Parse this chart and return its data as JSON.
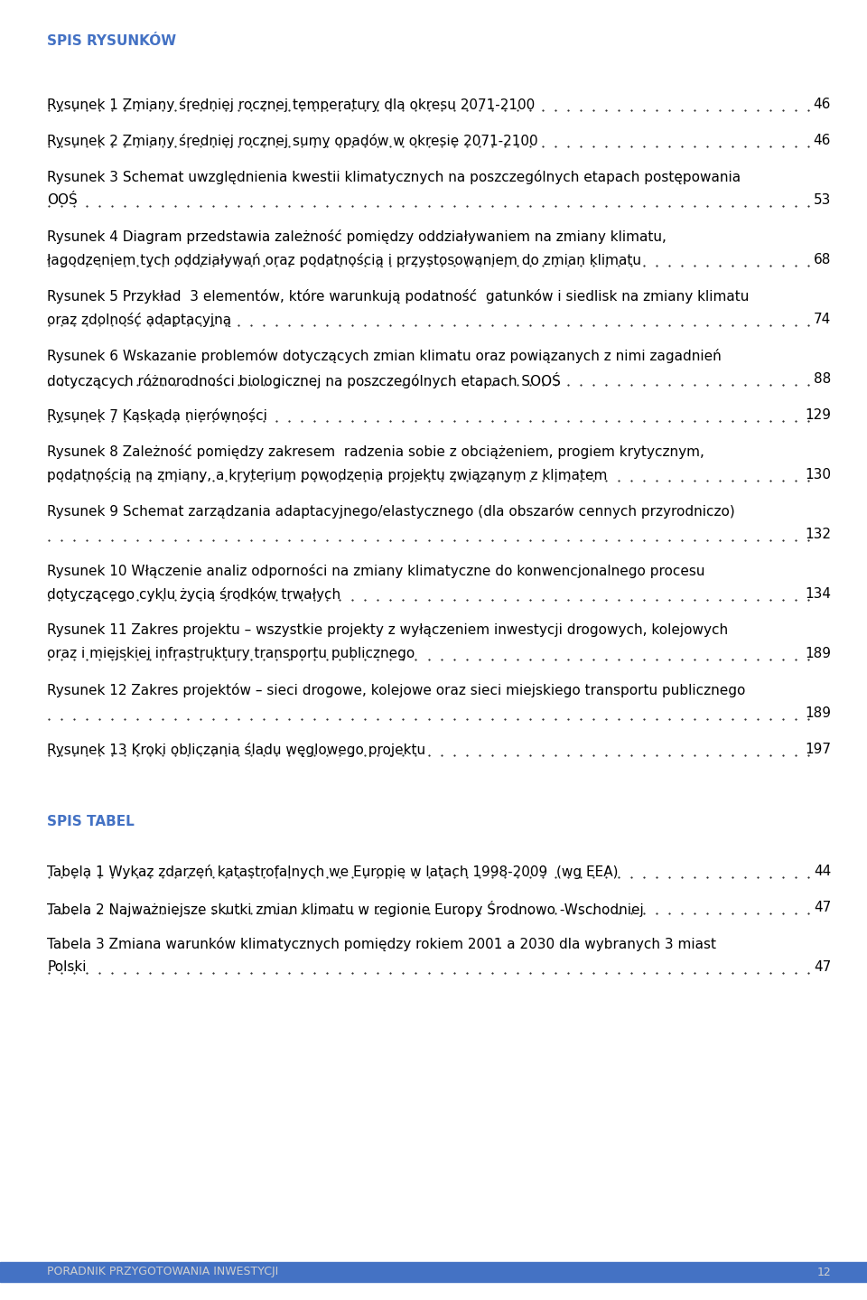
{
  "background_color": "#ffffff",
  "header_color": "#4472c4",
  "text_color": "#000000",
  "footer_bar_color": "#4472c4",
  "footer_text_color": "#d0d0d0",
  "section1_title": "SPIS RYSUNKÓW",
  "section2_title": "SPIS TABEL",
  "toc_entries": [
    {
      "lines": [
        "Rysunek 1 Zmiany średniej rocznej temperatury dla okresu 2071-2100"
      ],
      "page": "46"
    },
    {
      "lines": [
        "Rysunek 2 Zmiany średniej rocznej sumy opadów w okresie 2071-2100"
      ],
      "page": "46"
    },
    {
      "lines": [
        "Rysunek 3 Schemat uwzględnienia kwestii klimatycznych na poszczególnych etapach postępowania",
        "OOŚ"
      ],
      "page": "53"
    },
    {
      "lines": [
        "Rysunek 4 Diagram przedstawia zależność pomiędzy oddziaływaniem na zmiany klimatu,",
        "łagodzeniem tych oddziaływań oraz podatnością i przystosowaniem do zmian klimatu"
      ],
      "page": "68"
    },
    {
      "lines": [
        "Rysunek 5 Przykład  3 elementów, które warunkują podatność  gatunków i siedlisk na zmiany klimatu",
        "oraz zdolność adaptacyjną"
      ],
      "page": "74"
    },
    {
      "lines": [
        "Rysunek 6 Wskazanie problemów dotyczących zmian klimatu oraz powiązanych z nimi zagadnień",
        "dotyczących różnorodności biologicznej na poszczególnych etapach SOOŚ"
      ],
      "page": "88"
    },
    {
      "lines": [
        "Rysunek 7 Kaskada nierówności"
      ],
      "page": "129"
    },
    {
      "lines": [
        "Rysunek 8 Zależność pomiędzy zakresem  radzenia sobie z obciążeniem, progiem krytycznym,",
        "podatnością na zmiany, a kryterium powodzenia projektu związanym z klimatem"
      ],
      "page": "130"
    },
    {
      "lines": [
        "Rysunek 9 Schemat zarządzania adaptacyjnego/elastycznego (dla obszarów cennych przyrodniczo)",
        ""
      ],
      "page": "132"
    },
    {
      "lines": [
        "Rysunek 10 Włączenie analiz odporności na zmiany klimatyczne do konwencjonalnego procesu",
        "dotyczącego cyklu życia środków trwałych"
      ],
      "page": "134"
    },
    {
      "lines": [
        "Rysunek 11 Zakres projektu – wszystkie projekty z wyłączeniem inwestycji drogowych, kolejowych",
        "oraz i miejskiej infrastruktury transportu publicznego"
      ],
      "page": "189"
    },
    {
      "lines": [
        "Rysunek 12 Zakres projektów – sieci drogowe, kolejowe oraz sieci miejskiego transportu publicznego",
        ""
      ],
      "page": "189"
    },
    {
      "lines": [
        "Rysunek 13 Kroki obliczania śladu węglowego projektu"
      ],
      "page": "197"
    }
  ],
  "table_entries": [
    {
      "lines": [
        "Tabela 1 Wykaz zdarzeń katastrofalnych we Europie w latach 1998-2009  (wg EEA)"
      ],
      "page": "44"
    },
    {
      "lines": [
        "Tabela 2 Najważniejsze skutki zmian klimatu w regionie Europy Środnowo -Wschodniej"
      ],
      "page": "47"
    },
    {
      "lines": [
        "Tabela 3 Zmiana warunków klimatycznych pomiędzy rokiem 2001 a 2030 dla wybranych 3 miast",
        "Polski"
      ],
      "page": "47"
    }
  ],
  "footer_text": "PORADNIK PRZYGOTOWANIA INWESTYCJI",
  "footer_page": "12",
  "content_fontsize": 11,
  "header_fontsize": 11,
  "footer_fontsize": 9
}
